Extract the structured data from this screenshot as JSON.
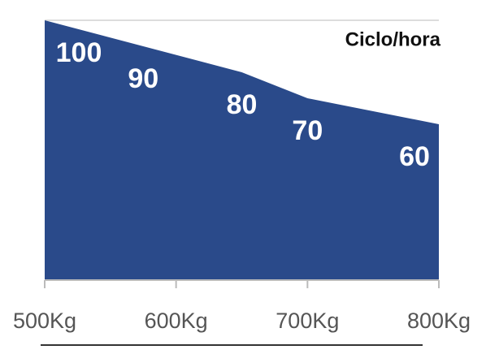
{
  "chart_data": {
    "type": "area",
    "series": [
      {
        "name": "Ciclo/hora",
        "color": "#2a4a8a",
        "values": [
          100,
          90,
          80,
          70,
          60
        ]
      }
    ],
    "x": [
      500,
      575,
      650,
      700,
      800
    ],
    "xlim": [
      500,
      800
    ],
    "xticks": [
      {
        "value": 500,
        "label": "500Kg"
      },
      {
        "value": 600,
        "label": "600Kg"
      },
      {
        "value": 700,
        "label": "700Kg"
      },
      {
        "value": 800,
        "label": "800Kg"
      }
    ],
    "ylim": [
      0,
      100
    ]
  }
}
